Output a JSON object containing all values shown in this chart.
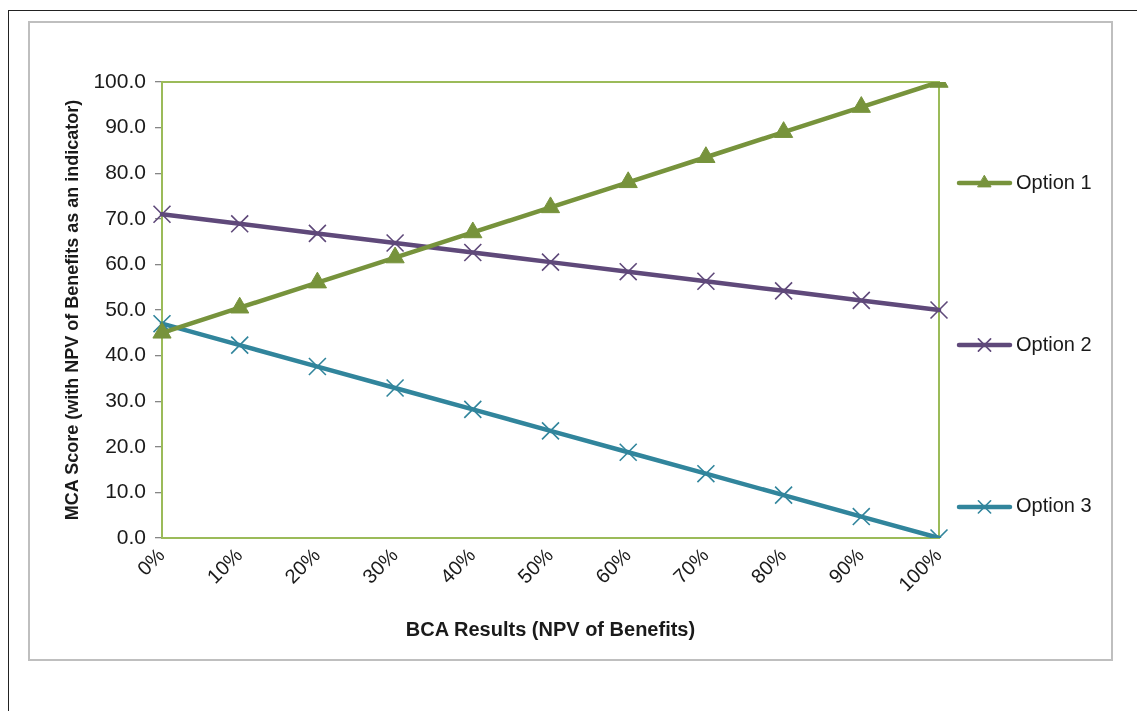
{
  "chart_data": {
    "type": "line",
    "xlabel": "BCA Results (NPV of Benefits)",
    "ylabel": "MCA Score (with NPV of Benefits as an indicator)",
    "categories": [
      "0%",
      "10%",
      "20%",
      "30%",
      "40%",
      "50%",
      "60%",
      "70%",
      "80%",
      "90%",
      "100%"
    ],
    "series": [
      {
        "name": "Option 1",
        "color": "#77933c",
        "marker": "triangle",
        "values": [
          45.0,
          50.5,
          56.0,
          61.5,
          67.0,
          72.5,
          78.0,
          83.5,
          89.0,
          94.5,
          100.0
        ]
      },
      {
        "name": "Option 2",
        "color": "#5f497a",
        "marker": "cross",
        "values": [
          71.0,
          68.9,
          66.8,
          64.7,
          62.6,
          60.5,
          58.4,
          56.3,
          54.2,
          52.1,
          50.0
        ]
      },
      {
        "name": "Option 3",
        "color": "#31859c",
        "marker": "cross",
        "values": [
          47.0,
          42.3,
          37.6,
          32.9,
          28.2,
          23.5,
          18.8,
          14.1,
          9.4,
          4.7,
          0.0
        ]
      }
    ],
    "ylim": [
      0,
      100
    ],
    "yticks": [
      {
        "value": 0,
        "label": "0.0"
      },
      {
        "value": 10,
        "label": "10.0"
      },
      {
        "value": 20,
        "label": "20.0"
      },
      {
        "value": 30,
        "label": "30.0"
      },
      {
        "value": 40,
        "label": "40.0"
      },
      {
        "value": 50,
        "label": "50.0"
      },
      {
        "value": 60,
        "label": "60.0"
      },
      {
        "value": 70,
        "label": "70.0"
      },
      {
        "value": 80,
        "label": "80.0"
      },
      {
        "value": 90,
        "label": "90.0"
      },
      {
        "value": 100,
        "label": "100.0"
      }
    ],
    "grid": false,
    "legend": "right",
    "line_style": "solid"
  }
}
